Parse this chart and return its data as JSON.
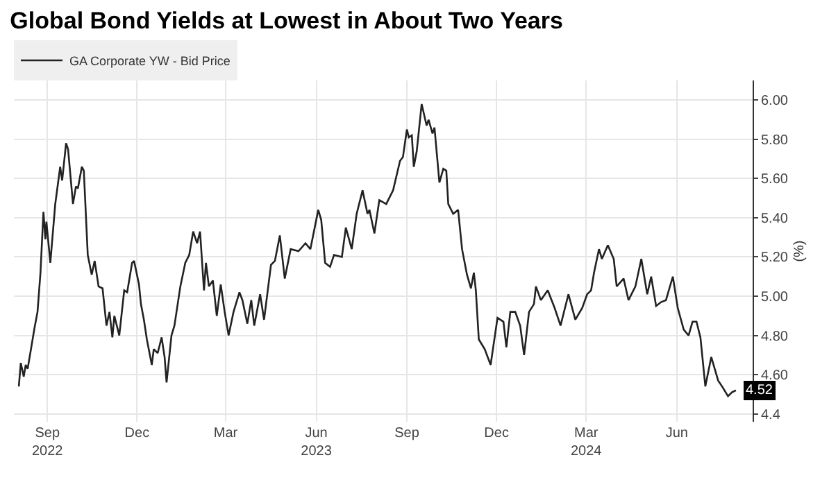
{
  "chart_data": {
    "type": "line",
    "title": "Global Bond Yields at Lowest in About Two Years",
    "ylabel": "(%)",
    "xlim": [
      "2022-07-29",
      "2024-08-17"
    ],
    "xticks": [
      {
        "value": "2022-09-01",
        "label": "Sep\n2022"
      },
      {
        "value": "2022-12-01",
        "label": "Dec"
      },
      {
        "value": "2023-03-01",
        "label": "Mar"
      },
      {
        "value": "2023-06-01",
        "label": "Jun\n2023"
      },
      {
        "value": "2023-09-01",
        "label": "Sep"
      },
      {
        "value": "2023-12-01",
        "label": "Dec"
      },
      {
        "value": "2024-03-01",
        "label": "Mar\n2024"
      },
      {
        "value": "2024-06-01",
        "label": "Jun"
      }
    ],
    "ylim": [
      4.36,
      6.1
    ],
    "yticks": [
      4.4,
      {
        "value": 4.6,
        "label": "4.60"
      },
      {
        "value": 4.8,
        "label": "4.80"
      },
      {
        "value": 5.0,
        "label": "5.00"
      },
      {
        "value": 5.2,
        "label": "5.20"
      },
      {
        "value": 5.4,
        "label": "5.40"
      },
      {
        "value": 5.6,
        "label": "5.60"
      },
      {
        "value": 5.8,
        "label": "5.80"
      },
      {
        "value": 6.0,
        "label": "6.00"
      }
    ],
    "grid": true,
    "legend": "top left",
    "annotations": [
      {
        "text": "4.52",
        "x": "2024-07-31",
        "y": 4.52
      }
    ],
    "series": [
      {
        "name": "GA Corporate YW - Bid Price",
        "color": "#222222",
        "x": [
          "2022-08-03",
          "2022-08-05",
          "2022-08-08",
          "2022-08-10",
          "2022-08-12",
          "2022-08-15",
          "2022-08-19",
          "2022-08-22",
          "2022-08-25",
          "2022-08-28",
          "2022-08-30",
          "2022-08-31",
          "2022-09-04",
          "2022-09-09",
          "2022-09-14",
          "2022-09-16",
          "2022-09-20",
          "2022-09-22",
          "2022-09-27",
          "2022-09-30",
          "2022-10-02",
          "2022-10-06",
          "2022-10-08",
          "2022-10-12",
          "2022-10-16",
          "2022-10-19",
          "2022-10-23",
          "2022-10-27",
          "2022-10-31",
          "2022-11-03",
          "2022-11-06",
          "2022-11-08",
          "2022-11-13",
          "2022-11-18",
          "2022-11-21",
          "2022-11-26",
          "2022-11-28",
          "2022-12-03",
          "2022-12-05",
          "2022-12-08",
          "2022-12-11",
          "2022-12-16",
          "2022-12-18",
          "2022-12-22",
          "2022-12-26",
          "2022-12-29",
          "2022-12-31",
          "2023-01-05",
          "2023-01-08",
          "2023-01-14",
          "2023-01-19",
          "2023-01-23",
          "2023-01-27",
          "2023-01-31",
          "2023-02-03",
          "2023-02-07",
          "2023-02-09",
          "2023-02-12",
          "2023-02-16",
          "2023-02-20",
          "2023-02-24",
          "2023-02-28",
          "2023-03-04",
          "2023-03-09",
          "2023-03-15",
          "2023-03-18",
          "2023-03-23",
          "2023-03-27",
          "2023-03-30",
          "2023-04-05",
          "2023-04-09",
          "2023-04-16",
          "2023-04-20",
          "2023-04-25",
          "2023-04-30",
          "2023-05-06",
          "2023-05-14",
          "2023-05-21",
          "2023-05-26",
          "2023-06-03",
          "2023-06-06",
          "2023-06-10",
          "2023-06-15",
          "2023-06-19",
          "2023-06-27",
          "2023-07-01",
          "2023-07-07",
          "2023-07-12",
          "2023-07-18",
          "2023-07-23",
          "2023-07-25",
          "2023-07-30",
          "2023-08-04",
          "2023-08-11",
          "2023-08-18",
          "2023-08-25",
          "2023-08-28",
          "2023-09-01",
          "2023-09-03",
          "2023-09-06",
          "2023-09-08",
          "2023-09-11",
          "2023-09-16",
          "2023-09-21",
          "2023-09-23",
          "2023-09-27",
          "2023-09-29",
          "2023-10-04",
          "2023-10-08",
          "2023-10-11",
          "2023-10-13",
          "2023-10-18",
          "2023-10-23",
          "2023-10-27",
          "2023-11-01",
          "2023-11-05",
          "2023-11-08",
          "2023-11-10",
          "2023-11-13",
          "2023-11-19",
          "2023-11-25",
          "2023-12-02",
          "2023-12-08",
          "2023-12-11",
          "2023-12-15",
          "2023-12-20",
          "2023-12-25",
          "2023-12-29",
          "2024-01-03",
          "2024-01-08",
          "2024-01-10",
          "2024-01-15",
          "2024-01-22",
          "2024-01-29",
          "2024-02-04",
          "2024-02-12",
          "2024-02-19",
          "2024-02-26",
          "2024-03-02",
          "2024-03-06",
          "2024-03-09",
          "2024-03-14",
          "2024-03-17",
          "2024-03-23",
          "2024-03-29",
          "2024-04-01",
          "2024-04-08",
          "2024-04-13",
          "2024-04-20",
          "2024-04-26",
          "2024-05-02",
          "2024-05-06",
          "2024-05-11",
          "2024-05-16",
          "2024-05-21",
          "2024-05-28",
          "2024-06-02",
          "2024-06-08",
          "2024-06-13",
          "2024-06-17",
          "2024-06-21",
          "2024-06-25",
          "2024-06-30",
          "2024-07-06",
          "2024-07-13",
          "2024-07-17",
          "2024-07-23",
          "2024-07-27",
          "2024-07-31"
        ],
        "values": [
          4.54,
          4.66,
          4.59,
          4.65,
          4.63,
          4.72,
          4.84,
          4.92,
          5.12,
          5.43,
          5.29,
          5.38,
          5.17,
          5.47,
          5.66,
          5.59,
          5.78,
          5.75,
          5.47,
          5.56,
          5.55,
          5.66,
          5.64,
          5.21,
          5.11,
          5.18,
          5.05,
          5.04,
          4.85,
          4.92,
          4.79,
          4.9,
          4.8,
          5.03,
          5.02,
          5.17,
          5.18,
          5.06,
          4.96,
          4.88,
          4.78,
          4.65,
          4.73,
          4.71,
          4.79,
          4.69,
          4.56,
          4.8,
          4.85,
          5.05,
          5.17,
          5.21,
          5.33,
          5.27,
          5.33,
          5.03,
          5.17,
          5.05,
          5.08,
          4.9,
          5.06,
          4.92,
          4.8,
          4.92,
          5.02,
          4.98,
          4.86,
          4.98,
          4.85,
          5.01,
          4.88,
          5.16,
          5.18,
          5.31,
          5.09,
          5.24,
          5.23,
          5.27,
          5.24,
          5.44,
          5.39,
          5.17,
          5.15,
          5.21,
          5.2,
          5.35,
          5.24,
          5.42,
          5.54,
          5.42,
          5.44,
          5.32,
          5.49,
          5.47,
          5.54,
          5.69,
          5.71,
          5.85,
          5.81,
          5.82,
          5.66,
          5.74,
          5.98,
          5.87,
          5.9,
          5.83,
          5.86,
          5.58,
          5.65,
          5.64,
          5.47,
          5.42,
          5.44,
          5.24,
          5.11,
          5.04,
          5.12,
          5.03,
          4.78,
          4.73,
          4.65,
          4.89,
          4.87,
          4.74,
          4.92,
          4.92,
          4.85,
          4.7,
          4.92,
          4.96,
          5.05,
          4.98,
          5.03,
          4.94,
          4.85,
          5.01,
          4.88,
          4.94,
          5.01,
          5.03,
          5.12,
          5.24,
          5.19,
          5.26,
          5.19,
          5.05,
          5.09,
          4.98,
          5.05,
          5.19,
          5.01,
          5.1,
          4.95,
          4.97,
          4.98,
          5.1,
          4.94,
          4.83,
          4.8,
          4.87,
          4.87,
          4.79,
          4.54,
          4.69,
          4.57,
          4.54,
          4.49,
          4.51,
          4.52
        ]
      }
    ]
  }
}
